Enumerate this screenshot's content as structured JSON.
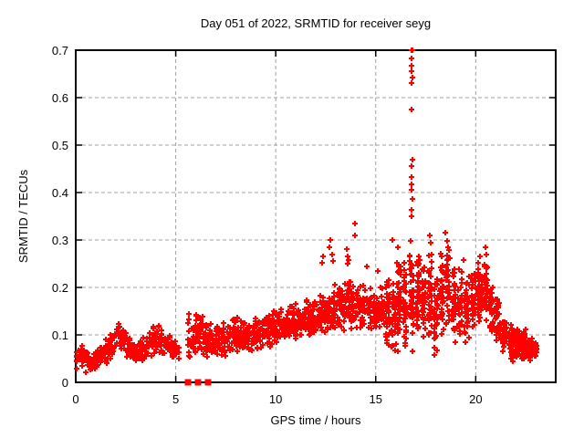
{
  "window": {
    "background": "#ffffff",
    "text_color": "#000000"
  },
  "chart_data": {
    "type": "scatter",
    "title": "Day 051 of 2022, SRMTID for receiver seyg",
    "xlabel": "GPS time / hours",
    "ylabel": "SRMTID / TECUs",
    "xlim": [
      0,
      24
    ],
    "ylim": [
      0,
      0.7
    ],
    "xticks": [
      [
        0,
        "0"
      ],
      [
        5,
        "5"
      ],
      [
        10,
        "10"
      ],
      [
        15,
        "15"
      ],
      [
        20,
        "20"
      ]
    ],
    "yticks": [
      [
        0,
        "0"
      ],
      [
        0.1,
        "0.1"
      ],
      [
        0.2,
        "0.2"
      ],
      [
        0.3,
        "0.3"
      ],
      [
        0.4,
        "0.4"
      ],
      [
        0.5,
        "0.5"
      ],
      [
        0.6,
        "0.6"
      ],
      [
        0.7,
        "0.7"
      ]
    ],
    "grid": {
      "show": true,
      "color": "#a0a0a0",
      "dash": "4,3"
    },
    "frame_color": "#000000",
    "legend": false,
    "marker": {
      "shape": "plus",
      "color": "#ff0000",
      "size": 7,
      "stroke_width": 2
    },
    "seed": 2022051,
    "band": [
      {
        "x": 0.0,
        "lo": 0.025,
        "hi": 0.085,
        "d": 62
      },
      {
        "x": 0.35,
        "lo": 0.02,
        "hi": 0.09,
        "d": 70
      },
      {
        "x": 0.8,
        "lo": 0.015,
        "hi": 0.06,
        "d": 70
      },
      {
        "x": 1.3,
        "lo": 0.03,
        "hi": 0.085,
        "d": 70
      },
      {
        "x": 1.8,
        "lo": 0.05,
        "hi": 0.115,
        "d": 70
      },
      {
        "x": 2.2,
        "lo": 0.06,
        "hi": 0.13,
        "d": 70
      },
      {
        "x": 2.6,
        "lo": 0.05,
        "hi": 0.115,
        "d": 70
      },
      {
        "x": 3.05,
        "lo": 0.035,
        "hi": 0.08,
        "d": 70
      },
      {
        "x": 3.5,
        "lo": 0.04,
        "hi": 0.1,
        "d": 70
      },
      {
        "x": 4.0,
        "lo": 0.06,
        "hi": 0.125,
        "d": 68
      },
      {
        "x": 4.45,
        "lo": 0.05,
        "hi": 0.115,
        "d": 64
      },
      {
        "x": 4.85,
        "lo": 0.04,
        "hi": 0.1,
        "d": 58
      },
      {
        "x": 5.2,
        "lo": 0.045,
        "hi": 0.085,
        "d": 48
      },
      {
        "x": 5.6,
        "lo": 0.04,
        "hi": 0.165,
        "d": 85,
        "gap": true
      },
      {
        "x": 5.9,
        "lo": 0.05,
        "hi": 0.15,
        "d": 85
      },
      {
        "x": 6.2,
        "lo": 0.05,
        "hi": 0.16,
        "d": 85
      },
      {
        "x": 6.55,
        "lo": 0.04,
        "hi": 0.145,
        "d": 85
      },
      {
        "x": 7.0,
        "lo": 0.05,
        "hi": 0.125,
        "d": 80
      },
      {
        "x": 7.5,
        "lo": 0.05,
        "hi": 0.13,
        "d": 80
      },
      {
        "x": 8.0,
        "lo": 0.055,
        "hi": 0.14,
        "d": 80
      },
      {
        "x": 8.5,
        "lo": 0.06,
        "hi": 0.135,
        "d": 80
      },
      {
        "x": 9.0,
        "lo": 0.06,
        "hi": 0.145,
        "d": 84
      },
      {
        "x": 9.5,
        "lo": 0.07,
        "hi": 0.15,
        "d": 84
      },
      {
        "x": 10.0,
        "lo": 0.075,
        "hi": 0.16,
        "d": 86
      },
      {
        "x": 10.5,
        "lo": 0.08,
        "hi": 0.165,
        "d": 86
      },
      {
        "x": 11.0,
        "lo": 0.08,
        "hi": 0.17,
        "d": 88
      },
      {
        "x": 11.5,
        "lo": 0.085,
        "hi": 0.18,
        "d": 88
      },
      {
        "x": 12.0,
        "lo": 0.09,
        "hi": 0.19,
        "d": 90
      },
      {
        "x": 12.5,
        "lo": 0.09,
        "hi": 0.215,
        "d": 90
      },
      {
        "x": 13.0,
        "lo": 0.095,
        "hi": 0.21,
        "d": 90
      },
      {
        "x": 13.5,
        "lo": 0.1,
        "hi": 0.225,
        "d": 90
      },
      {
        "x": 14.0,
        "lo": 0.1,
        "hi": 0.22,
        "d": 88
      },
      {
        "x": 14.5,
        "lo": 0.105,
        "hi": 0.21,
        "d": 84
      },
      {
        "x": 15.0,
        "lo": 0.09,
        "hi": 0.2,
        "d": 80
      },
      {
        "x": 15.45,
        "lo": 0.08,
        "hi": 0.21,
        "d": 75
      }
    ],
    "columns": [
      {
        "x": 15.6,
        "w": 0.1,
        "lo": 0.07,
        "hi": 0.24,
        "n": 35
      },
      {
        "x": 15.9,
        "w": 0.1,
        "lo": 0.06,
        "hi": 0.22,
        "n": 32
      },
      {
        "x": 16.15,
        "w": 0.09,
        "lo": 0.05,
        "hi": 0.27,
        "n": 38
      },
      {
        "x": 16.45,
        "w": 0.09,
        "lo": 0.06,
        "hi": 0.26,
        "n": 38
      },
      {
        "x": 16.8,
        "w": 0.1,
        "lo": 0.05,
        "hi": 0.34,
        "n": 45
      },
      {
        "x": 17.1,
        "w": 0.09,
        "lo": 0.07,
        "hi": 0.28,
        "n": 38
      },
      {
        "x": 17.4,
        "w": 0.09,
        "lo": 0.08,
        "hi": 0.26,
        "n": 35
      },
      {
        "x": 17.7,
        "w": 0.09,
        "lo": 0.06,
        "hi": 0.29,
        "n": 38
      },
      {
        "x": 18.0,
        "w": 0.1,
        "lo": 0.05,
        "hi": 0.24,
        "n": 35
      },
      {
        "x": 18.3,
        "w": 0.09,
        "lo": 0.08,
        "hi": 0.28,
        "n": 38
      },
      {
        "x": 18.6,
        "w": 0.09,
        "lo": 0.09,
        "hi": 0.3,
        "n": 38
      },
      {
        "x": 18.9,
        "w": 0.1,
        "lo": 0.07,
        "hi": 0.25,
        "n": 35
      },
      {
        "x": 19.2,
        "w": 0.1,
        "lo": 0.09,
        "hi": 0.24,
        "n": 35
      },
      {
        "x": 19.55,
        "w": 0.12,
        "lo": 0.08,
        "hi": 0.23,
        "n": 35
      },
      {
        "x": 19.9,
        "w": 0.1,
        "lo": 0.1,
        "hi": 0.25,
        "n": 38
      },
      {
        "x": 20.2,
        "w": 0.1,
        "lo": 0.12,
        "hi": 0.26,
        "n": 40
      },
      {
        "x": 20.5,
        "w": 0.1,
        "lo": 0.12,
        "hi": 0.27,
        "n": 40
      },
      {
        "x": 20.8,
        "w": 0.1,
        "lo": 0.09,
        "hi": 0.21,
        "n": 35
      },
      {
        "x": 21.1,
        "w": 0.1,
        "lo": 0.08,
        "hi": 0.19,
        "n": 35
      },
      {
        "x": 21.45,
        "w": 0.12,
        "lo": 0.05,
        "hi": 0.15,
        "n": 40
      },
      {
        "x": 21.8,
        "w": 0.12,
        "lo": 0.04,
        "hi": 0.13,
        "n": 45
      },
      {
        "x": 22.1,
        "w": 0.12,
        "lo": 0.04,
        "hi": 0.12,
        "n": 55
      },
      {
        "x": 22.4,
        "w": 0.12,
        "lo": 0.04,
        "hi": 0.115,
        "n": 55
      },
      {
        "x": 22.7,
        "w": 0.12,
        "lo": 0.045,
        "hi": 0.1,
        "n": 45
      },
      {
        "x": 22.95,
        "w": 0.1,
        "lo": 0.05,
        "hi": 0.09,
        "n": 25
      }
    ],
    "outliers": [
      [
        12.3,
        0.252
      ],
      [
        12.35,
        0.265
      ],
      [
        12.7,
        0.285
      ],
      [
        12.75,
        0.3
      ],
      [
        12.8,
        0.27
      ],
      [
        12.85,
        0.255
      ],
      [
        13.55,
        0.28
      ],
      [
        13.6,
        0.265
      ],
      [
        13.65,
        0.258
      ],
      [
        13.6,
        0.25
      ],
      [
        13.95,
        0.335
      ],
      [
        13.95,
        0.31
      ],
      [
        14.55,
        0.245
      ],
      [
        15.1,
        0.235
      ],
      [
        15.85,
        0.3
      ],
      [
        16.1,
        0.285
      ],
      [
        16.15,
        0.245
      ],
      [
        16.78,
        0.7
      ],
      [
        16.84,
        0.7
      ],
      [
        16.81,
        0.683
      ],
      [
        16.8,
        0.668
      ],
      [
        16.79,
        0.656
      ],
      [
        16.82,
        0.643
      ],
      [
        16.8,
        0.63
      ],
      [
        16.8,
        0.575
      ],
      [
        16.82,
        0.47
      ],
      [
        16.79,
        0.455
      ],
      [
        16.81,
        0.432
      ],
      [
        16.8,
        0.417
      ],
      [
        16.78,
        0.405
      ],
      [
        16.82,
        0.386
      ],
      [
        16.8,
        0.363
      ],
      [
        16.79,
        0.35
      ],
      [
        17.7,
        0.31
      ],
      [
        17.75,
        0.295
      ],
      [
        18.5,
        0.315
      ],
      [
        18.55,
        0.298
      ],
      [
        18.6,
        0.285
      ],
      [
        19.4,
        0.258
      ],
      [
        20.2,
        0.265
      ],
      [
        20.5,
        0.285
      ],
      [
        20.55,
        0.27
      ]
    ],
    "zero_markers": [
      5.61,
      6.11,
      6.61
    ]
  }
}
